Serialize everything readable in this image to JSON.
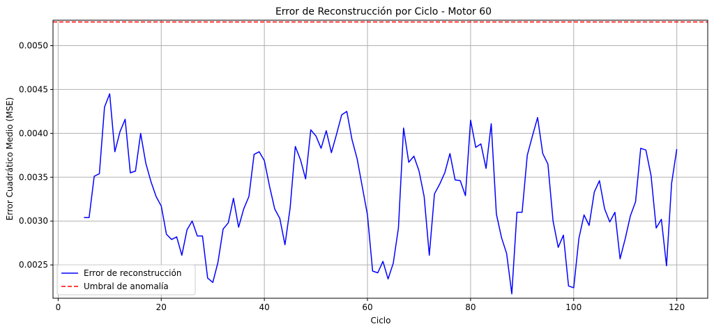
{
  "chart_data": {
    "type": "line",
    "title": "Error de Reconstrucción por Ciclo - Motor 60",
    "xlabel": "Ciclo",
    "ylabel": "Error Cuadrático Medio (MSE)",
    "xlim": [
      -1,
      126
    ],
    "ylim": [
      0.00212,
      0.00529
    ],
    "xticks": [
      0,
      20,
      40,
      60,
      80,
      100,
      120
    ],
    "xtick_labels": [
      "0",
      "20",
      "40",
      "60",
      "80",
      "100",
      "120"
    ],
    "yticks": [
      0.0025,
      0.003,
      0.0035,
      0.004,
      0.0045,
      0.005
    ],
    "ytick_labels": [
      "0.0025",
      "0.0030",
      "0.0035",
      "0.0040",
      "0.0045",
      "0.0050"
    ],
    "grid": true,
    "legend_position": "lower-left",
    "series": [
      {
        "name": "Error de reconstrucción",
        "color": "#0000ff",
        "x": [
          5,
          6,
          7,
          8,
          9,
          10,
          11,
          12,
          13,
          14,
          15,
          16,
          17,
          18,
          19,
          20,
          21,
          22,
          23,
          24,
          25,
          26,
          27,
          28,
          29,
          30,
          31,
          32,
          33,
          34,
          35,
          36,
          37,
          38,
          39,
          40,
          41,
          42,
          43,
          44,
          45,
          46,
          47,
          48,
          49,
          50,
          51,
          52,
          53,
          54,
          55,
          56,
          57,
          58,
          59,
          60,
          61,
          62,
          63,
          64,
          65,
          66,
          67,
          68,
          69,
          70,
          71,
          72,
          73,
          74,
          75,
          76,
          77,
          78,
          79,
          80,
          81,
          82,
          83,
          84,
          85,
          86,
          87,
          88,
          89,
          90,
          91,
          92,
          93,
          94,
          95,
          96,
          97,
          98,
          99,
          100,
          101,
          102,
          103,
          104,
          105,
          106,
          107,
          108,
          109,
          110,
          111,
          112,
          113,
          114,
          115,
          116,
          117,
          118,
          119,
          120
        ],
        "y": [
          0.00304,
          0.00304,
          0.00351,
          0.00354,
          0.0043,
          0.00445,
          0.00379,
          0.00402,
          0.00416,
          0.00355,
          0.00357,
          0.004,
          0.00366,
          0.00345,
          0.00328,
          0.00317,
          0.00285,
          0.00279,
          0.00282,
          0.00261,
          0.0029,
          0.003,
          0.00283,
          0.00283,
          0.00235,
          0.0023,
          0.00253,
          0.00291,
          0.00298,
          0.00326,
          0.00293,
          0.00314,
          0.00328,
          0.00376,
          0.00379,
          0.00369,
          0.0034,
          0.00314,
          0.00303,
          0.00273,
          0.00315,
          0.00385,
          0.0037,
          0.00348,
          0.00404,
          0.00397,
          0.00383,
          0.00403,
          0.00378,
          0.00399,
          0.00421,
          0.00425,
          0.00393,
          0.00371,
          0.00339,
          0.00307,
          0.00243,
          0.00241,
          0.00254,
          0.00234,
          0.00252,
          0.00292,
          0.00406,
          0.00367,
          0.00374,
          0.00357,
          0.00328,
          0.00261,
          0.00331,
          0.00342,
          0.00355,
          0.00377,
          0.00347,
          0.00346,
          0.00329,
          0.00415,
          0.00384,
          0.00388,
          0.0036,
          0.00411,
          0.00308,
          0.00281,
          0.00263,
          0.00217,
          0.0031,
          0.0031,
          0.00375,
          0.00397,
          0.00418,
          0.00377,
          0.00365,
          0.003,
          0.0027,
          0.00284,
          0.00226,
          0.00224,
          0.0028,
          0.00307,
          0.00295,
          0.00333,
          0.00346,
          0.00314,
          0.00299,
          0.0031,
          0.00257,
          0.0028,
          0.00306,
          0.00322,
          0.00383,
          0.00381,
          0.00352,
          0.00292,
          0.00302,
          0.00249,
          0.00343,
          0.00382
        ]
      }
    ],
    "threshold": {
      "name": "Umbral de anomalía",
      "color": "#ff0000",
      "value": 0.00527
    }
  }
}
